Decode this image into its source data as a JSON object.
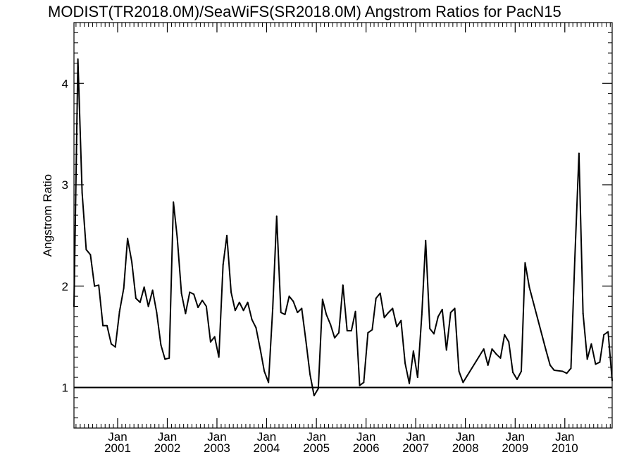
{
  "chart_data": {
    "type": "line",
    "title": "MODIST(TR2018.0M)/SeaWiFS(SR2018.0M)  Angstrom Ratios for PacN15",
    "ylabel": "Angstrom Ratio",
    "xlabel": "",
    "xlim": [
      "2000-02-15",
      "2010-12-15"
    ],
    "ylim": [
      0.6,
      4.6
    ],
    "y_ticks": [
      "1",
      "2",
      "3",
      "4"
    ],
    "x_ticks": [
      {
        "date": "2001-01-01",
        "month": "Jan",
        "year": "2001"
      },
      {
        "date": "2002-01-01",
        "month": "Jan",
        "year": "2002"
      },
      {
        "date": "2003-01-01",
        "month": "Jan",
        "year": "2003"
      },
      {
        "date": "2004-01-01",
        "month": "Jan",
        "year": "2004"
      },
      {
        "date": "2005-01-01",
        "month": "Jan",
        "year": "2005"
      },
      {
        "date": "2006-01-01",
        "month": "Jan",
        "year": "2006"
      },
      {
        "date": "2007-01-01",
        "month": "Jan",
        "year": "2007"
      },
      {
        "date": "2008-01-01",
        "month": "Jan",
        "year": "2008"
      },
      {
        "date": "2009-01-01",
        "month": "Jan",
        "year": "2009"
      },
      {
        "date": "2010-01-01",
        "month": "Jan",
        "year": "2010"
      }
    ],
    "reference_line": {
      "y": 1.0
    },
    "grid": false,
    "legend": "none",
    "series": [
      {
        "color": "#000000",
        "points": [
          [
            "2000-02-15",
            1.8
          ],
          [
            "2000-03-15",
            4.24
          ],
          [
            "2000-04-15",
            2.92
          ],
          [
            "2000-05-15",
            2.36
          ],
          [
            "2000-06-15",
            2.31
          ],
          [
            "2000-07-15",
            2.0
          ],
          [
            "2000-08-15",
            2.01
          ],
          [
            "2000-09-15",
            1.61
          ],
          [
            "2000-10-15",
            1.61
          ],
          [
            "2000-11-15",
            1.43
          ],
          [
            "2000-12-15",
            1.4
          ],
          [
            "2001-01-15",
            1.75
          ],
          [
            "2001-02-15",
            1.98
          ],
          [
            "2001-03-15",
            2.47
          ],
          [
            "2001-04-15",
            2.24
          ],
          [
            "2001-05-15",
            1.88
          ],
          [
            "2001-06-15",
            1.84
          ],
          [
            "2001-07-15",
            1.99
          ],
          [
            "2001-08-15",
            1.8
          ],
          [
            "2001-09-15",
            1.96
          ],
          [
            "2001-10-15",
            1.74
          ],
          [
            "2001-11-15",
            1.42
          ],
          [
            "2001-12-15",
            1.28
          ],
          [
            "2002-01-15",
            1.29
          ],
          [
            "2002-02-15",
            2.83
          ],
          [
            "2002-03-15",
            2.48
          ],
          [
            "2002-04-15",
            1.93
          ],
          [
            "2002-05-15",
            1.73
          ],
          [
            "2002-06-15",
            1.94
          ],
          [
            "2002-07-15",
            1.92
          ],
          [
            "2002-08-15",
            1.79
          ],
          [
            "2002-09-15",
            1.86
          ],
          [
            "2002-10-15",
            1.8
          ],
          [
            "2002-11-15",
            1.45
          ],
          [
            "2002-12-15",
            1.5
          ],
          [
            "2003-01-15",
            1.3
          ],
          [
            "2003-02-15",
            2.21
          ],
          [
            "2003-03-15",
            2.5
          ],
          [
            "2003-04-15",
            1.94
          ],
          [
            "2003-05-15",
            1.76
          ],
          [
            "2003-06-15",
            1.84
          ],
          [
            "2003-07-15",
            1.76
          ],
          [
            "2003-08-15",
            1.84
          ],
          [
            "2003-09-15",
            1.67
          ],
          [
            "2003-10-15",
            1.59
          ],
          [
            "2003-11-15",
            1.38
          ],
          [
            "2003-12-15",
            1.16
          ],
          [
            "2004-01-15",
            1.05
          ],
          [
            "2004-02-15",
            1.78
          ],
          [
            "2004-03-15",
            2.69
          ],
          [
            "2004-04-15",
            1.74
          ],
          [
            "2004-05-15",
            1.72
          ],
          [
            "2004-06-15",
            1.9
          ],
          [
            "2004-07-15",
            1.85
          ],
          [
            "2004-08-15",
            1.74
          ],
          [
            "2004-09-15",
            1.78
          ],
          [
            "2004-10-15",
            1.47
          ],
          [
            "2004-11-15",
            1.13
          ],
          [
            "2004-12-15",
            0.92
          ],
          [
            "2005-01-15",
            0.99
          ],
          [
            "2005-02-15",
            1.87
          ],
          [
            "2005-03-15",
            1.72
          ],
          [
            "2005-04-15",
            1.62
          ],
          [
            "2005-05-15",
            1.49
          ],
          [
            "2005-06-15",
            1.54
          ],
          [
            "2005-07-15",
            2.01
          ],
          [
            "2005-08-15",
            1.56
          ],
          [
            "2005-09-15",
            1.56
          ],
          [
            "2005-10-15",
            1.75
          ],
          [
            "2005-11-15",
            1.02
          ],
          [
            "2005-12-15",
            1.05
          ],
          [
            "2006-01-15",
            1.54
          ],
          [
            "2006-02-15",
            1.57
          ],
          [
            "2006-03-15",
            1.88
          ],
          [
            "2006-04-15",
            1.93
          ],
          [
            "2006-05-15",
            1.69
          ],
          [
            "2006-06-15",
            1.74
          ],
          [
            "2006-07-15",
            1.78
          ],
          [
            "2006-08-15",
            1.6
          ],
          [
            "2006-09-15",
            1.66
          ],
          [
            "2006-10-15",
            1.24
          ],
          [
            "2006-11-15",
            1.04
          ],
          [
            "2006-12-15",
            1.36
          ],
          [
            "2007-01-15",
            1.1
          ],
          [
            "2007-02-15",
            1.72
          ],
          [
            "2007-03-15",
            2.45
          ],
          [
            "2007-04-15",
            1.58
          ],
          [
            "2007-05-15",
            1.53
          ],
          [
            "2007-06-15",
            1.7
          ],
          [
            "2007-07-15",
            1.77
          ],
          [
            "2007-08-15",
            1.37
          ],
          [
            "2007-09-15",
            1.74
          ],
          [
            "2007-10-15",
            1.78
          ],
          [
            "2007-11-15",
            1.16
          ],
          [
            "2007-12-15",
            1.05
          ],
          [
            "2008-05-15",
            1.38
          ],
          [
            "2008-06-15",
            1.22
          ],
          [
            "2008-07-15",
            1.38
          ],
          [
            "2008-08-15",
            1.33
          ],
          [
            "2008-09-15",
            1.29
          ],
          [
            "2008-10-15",
            1.52
          ],
          [
            "2008-11-15",
            1.45
          ],
          [
            "2008-12-15",
            1.15
          ],
          [
            "2009-01-15",
            1.08
          ],
          [
            "2009-02-15",
            1.16
          ],
          [
            "2009-03-15",
            2.23
          ],
          [
            "2009-04-15",
            1.99
          ],
          [
            "2009-08-15",
            1.37
          ],
          [
            "2009-09-15",
            1.22
          ],
          [
            "2009-10-15",
            1.17
          ],
          [
            "2009-12-15",
            1.16
          ],
          [
            "2010-01-15",
            1.14
          ],
          [
            "2010-02-15",
            1.19
          ],
          [
            "2010-03-15",
            2.25
          ],
          [
            "2010-04-15",
            3.31
          ],
          [
            "2010-05-15",
            1.73
          ],
          [
            "2010-06-15",
            1.28
          ],
          [
            "2010-07-15",
            1.43
          ],
          [
            "2010-08-15",
            1.23
          ],
          [
            "2010-09-15",
            1.25
          ],
          [
            "2010-10-15",
            1.52
          ],
          [
            "2010-11-15",
            1.55
          ],
          [
            "2010-12-15",
            1.07
          ]
        ]
      }
    ]
  }
}
